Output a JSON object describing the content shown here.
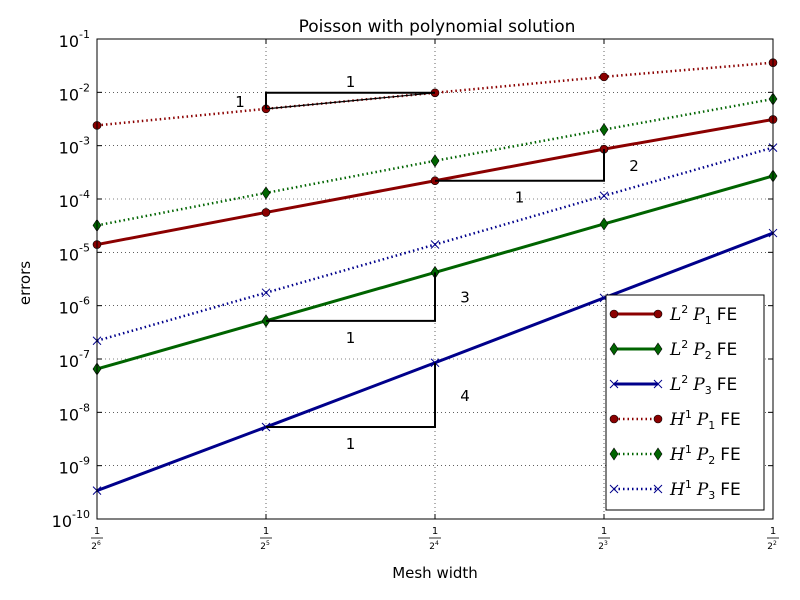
{
  "chart_data": {
    "type": "line",
    "title": "Poisson with polynomial solution",
    "xlabel": "Mesh width",
    "ylabel": "errors",
    "xscale": "log2",
    "yscale": "log10",
    "xlim": [
      0.015625,
      0.25
    ],
    "ylim": [
      1e-10,
      0.1
    ],
    "grid": true,
    "legend_position": "lower-right",
    "x_ticks": [
      {
        "value": 0.015625,
        "num": "1",
        "base": "2",
        "exp": "6"
      },
      {
        "value": 0.03125,
        "num": "1",
        "base": "2",
        "exp": "5"
      },
      {
        "value": 0.0625,
        "num": "1",
        "base": "2",
        "exp": "4"
      },
      {
        "value": 0.125,
        "num": "1",
        "base": "2",
        "exp": "3"
      },
      {
        "value": 0.25,
        "num": "1",
        "base": "2",
        "exp": "2"
      }
    ],
    "y_ticks": [
      {
        "value": 1e-10,
        "base": "10",
        "exp": "-10"
      },
      {
        "value": 1e-09,
        "base": "10",
        "exp": "-9"
      },
      {
        "value": 1e-08,
        "base": "10",
        "exp": "-8"
      },
      {
        "value": 1e-07,
        "base": "10",
        "exp": "-7"
      },
      {
        "value": 1e-06,
        "base": "10",
        "exp": "-6"
      },
      {
        "value": 1e-05,
        "base": "10",
        "exp": "-5"
      },
      {
        "value": 0.0001,
        "base": "10",
        "exp": "-4"
      },
      {
        "value": 0.001,
        "base": "10",
        "exp": "-3"
      },
      {
        "value": 0.01,
        "base": "10",
        "exp": "-2"
      },
      {
        "value": 0.1,
        "base": "10",
        "exp": "-1"
      }
    ],
    "x": [
      0.015625,
      0.03125,
      0.0625,
      0.125,
      0.25
    ],
    "series": [
      {
        "id": "l2p1",
        "norm": "L",
        "norm_sup": "2",
        "space": "P",
        "space_sub": "1",
        "suffix": "FE",
        "values": [
          1.4e-05,
          5.6e-05,
          0.00022,
          0.00086,
          0.0031
        ],
        "color": "#8b0000",
        "style": "solid",
        "marker": "circle"
      },
      {
        "id": "l2p2",
        "norm": "L",
        "norm_sup": "2",
        "space": "P",
        "space_sub": "2",
        "suffix": "FE",
        "values": [
          6.5e-08,
          5.2e-07,
          4.2e-06,
          3.4e-05,
          0.00027
        ],
        "color": "#006400",
        "style": "solid",
        "marker": "diamond"
      },
      {
        "id": "l2p3",
        "norm": "L",
        "norm_sup": "2",
        "space": "P",
        "space_sub": "3",
        "suffix": "FE",
        "values": [
          3.4e-10,
          5.3e-09,
          8.5e-08,
          1.4e-06,
          2.3e-05
        ],
        "color": "#00008b",
        "style": "solid",
        "marker": "x"
      },
      {
        "id": "h1p1",
        "norm": "H",
        "norm_sup": "1",
        "space": "P",
        "space_sub": "1",
        "suffix": "FE",
        "values": [
          0.0024,
          0.0049,
          0.0098,
          0.0195,
          0.036
        ],
        "color": "#8b0000",
        "style": "dotted",
        "marker": "circle"
      },
      {
        "id": "h1p2",
        "norm": "H",
        "norm_sup": "1",
        "space": "P",
        "space_sub": "2",
        "suffix": "FE",
        "values": [
          3.2e-05,
          0.00013,
          0.00052,
          0.002,
          0.0075
        ],
        "color": "#006400",
        "style": "dotted",
        "marker": "diamond"
      },
      {
        "id": "h1p3",
        "norm": "H",
        "norm_sup": "1",
        "space": "P",
        "space_sub": "3",
        "suffix": "FE",
        "values": [
          2.2e-07,
          1.75e-06,
          1.4e-05,
          0.000115,
          0.00092
        ],
        "color": "#00008b",
        "style": "dotted",
        "marker": "x"
      }
    ],
    "slope_triangles": [
      {
        "x0": 0.03125,
        "x1": 0.0625,
        "y_low": 0.0049,
        "y_high": 0.0098,
        "vertical_at": "left",
        "run_label": "1",
        "rise_label": "1"
      },
      {
        "x0": 0.0625,
        "x1": 0.125,
        "y_low": 0.00022,
        "y_high": 0.00086,
        "vertical_at": "right",
        "run_label": "1",
        "rise_label": "2"
      },
      {
        "x0": 0.03125,
        "x1": 0.0625,
        "y_low": 5.2e-07,
        "y_high": 4.2e-06,
        "vertical_at": "right",
        "run_label": "1",
        "rise_label": "3"
      },
      {
        "x0": 0.03125,
        "x1": 0.0625,
        "y_low": 5.3e-09,
        "y_high": 8.5e-08,
        "vertical_at": "right",
        "run_label": "1",
        "rise_label": "4"
      }
    ]
  }
}
